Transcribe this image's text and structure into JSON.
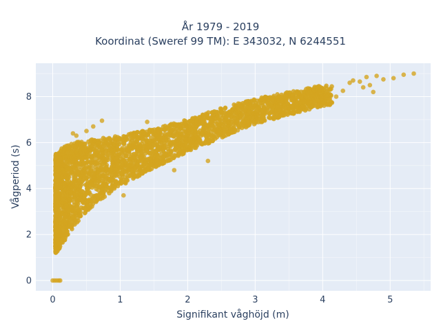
{
  "chart_data": {
    "type": "scatter",
    "title_line1": "År 1979 - 2019",
    "title_line2": "Koordinat (Sweref 99 TM): E 343032, N 6244551",
    "xlabel": "Signifikant våghöjd (m)",
    "ylabel": "Vågperiod (s)",
    "xlim": [
      -0.25,
      5.6
    ],
    "ylim": [
      -0.45,
      9.45
    ],
    "xticks": [
      0,
      1,
      2,
      3,
      4,
      5
    ],
    "yticks": [
      0,
      2,
      4,
      6,
      8
    ],
    "grid": true,
    "marker_color": "#D4A520",
    "density_trend": {
      "x": [
        0.05,
        0.15,
        0.3,
        0.5,
        0.75,
        1.0,
        1.5,
        2.0,
        2.5,
        3.0,
        3.5,
        4.0
      ],
      "y_low": [
        1.2,
        1.6,
        2.3,
        3.0,
        3.6,
        4.1,
        4.9,
        5.6,
        6.2,
        6.8,
        7.2,
        7.6
      ],
      "y_high": [
        5.5,
        5.8,
        6.0,
        6.1,
        6.2,
        6.3,
        6.6,
        7.0,
        7.5,
        7.9,
        8.2,
        8.5
      ]
    },
    "points": [
      {
        "x": 0.0,
        "y": 0.0
      },
      {
        "x": 0.03,
        "y": 0.0
      },
      {
        "x": 0.06,
        "y": 0.0
      },
      {
        "x": 0.09,
        "y": 0.0
      },
      {
        "x": 0.11,
        "y": 0.0
      },
      {
        "x": 4.3,
        "y": 8.25
      },
      {
        "x": 4.4,
        "y": 8.6
      },
      {
        "x": 4.45,
        "y": 8.7
      },
      {
        "x": 4.55,
        "y": 8.65
      },
      {
        "x": 4.6,
        "y": 8.4
      },
      {
        "x": 4.65,
        "y": 8.85
      },
      {
        "x": 4.7,
        "y": 8.5
      },
      {
        "x": 4.75,
        "y": 8.2
      },
      {
        "x": 4.8,
        "y": 8.9
      },
      {
        "x": 4.9,
        "y": 8.75
      },
      {
        "x": 5.05,
        "y": 8.8
      },
      {
        "x": 5.2,
        "y": 8.95
      },
      {
        "x": 5.35,
        "y": 9.0
      },
      {
        "x": 4.2,
        "y": 8.0
      },
      {
        "x": 4.1,
        "y": 7.85
      },
      {
        "x": 0.5,
        "y": 6.5
      },
      {
        "x": 0.6,
        "y": 6.7
      },
      {
        "x": 0.73,
        "y": 6.95
      },
      {
        "x": 1.4,
        "y": 6.9
      },
      {
        "x": 1.8,
        "y": 4.8
      },
      {
        "x": 2.3,
        "y": 5.2
      },
      {
        "x": 0.35,
        "y": 6.3
      },
      {
        "x": 0.3,
        "y": 6.4
      },
      {
        "x": 1.05,
        "y": 3.7
      },
      {
        "x": 3.1,
        "y": 6.9
      }
    ]
  }
}
